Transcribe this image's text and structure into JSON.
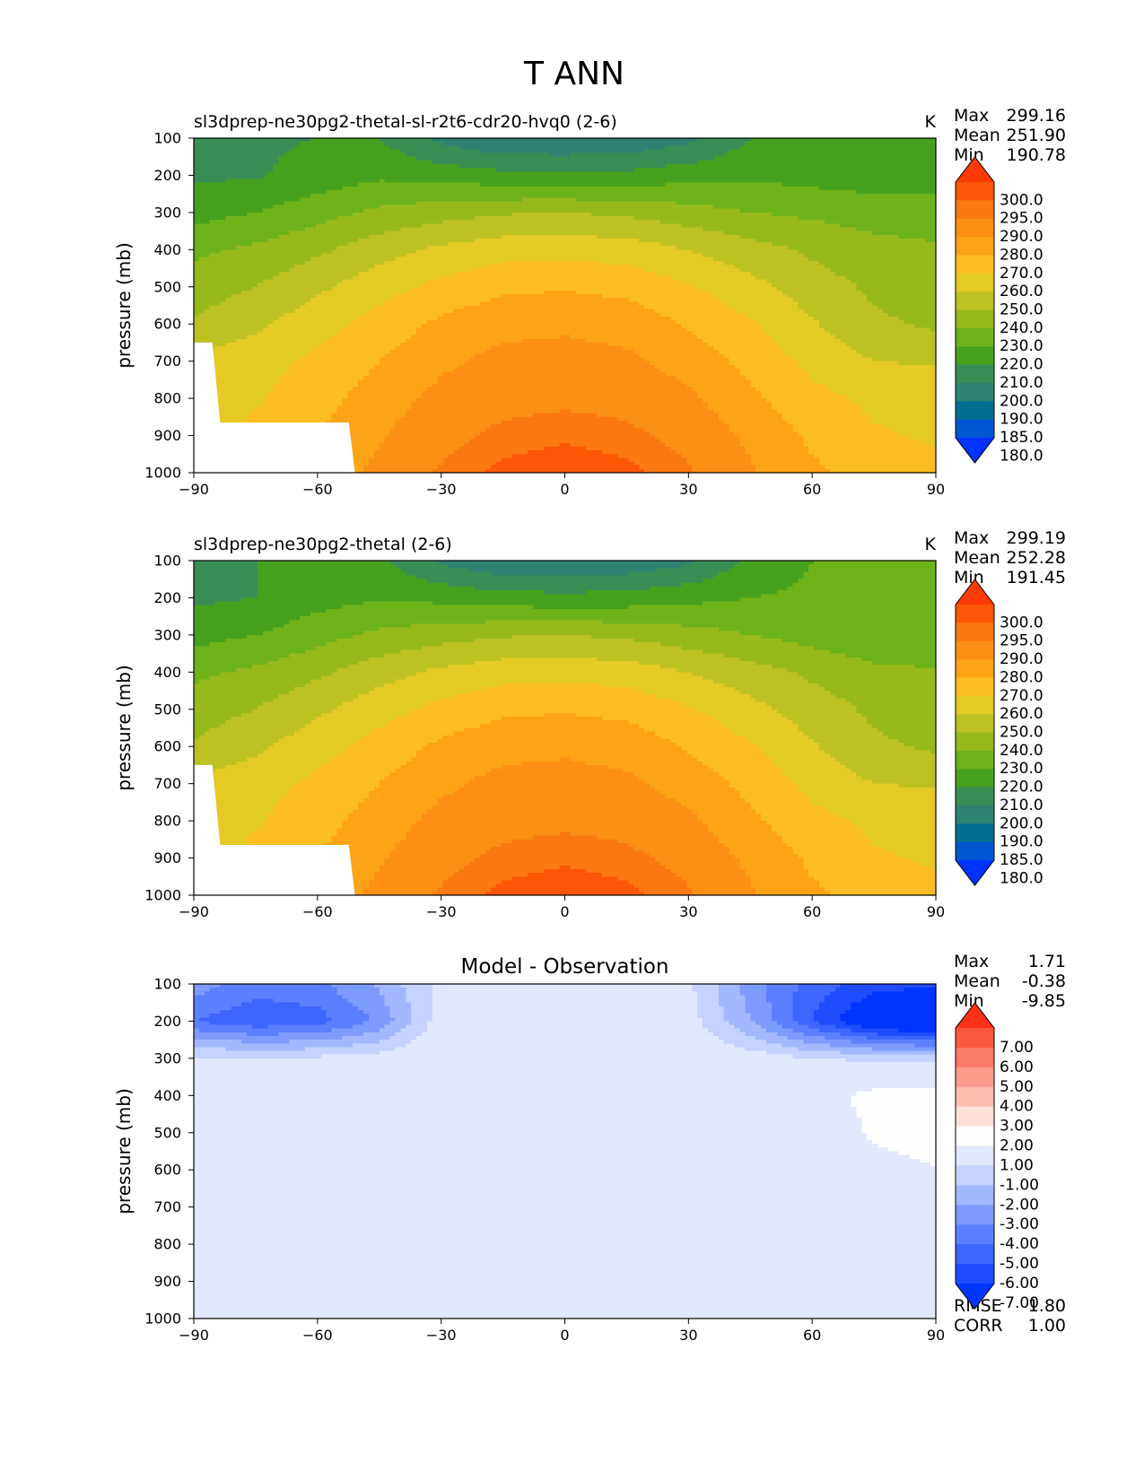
{
  "figure_title": "T ANN",
  "yaxis_label": "pressure (mb)",
  "stat_labels": {
    "max": "Max",
    "mean": "Mean",
    "min": "Min",
    "rmse": "RMSE",
    "corr": "CORR"
  },
  "colors": {
    "temperature_fill_bands": [
      "#0033ff",
      "#0055d0",
      "#007090",
      "#2e8272",
      "#398e56",
      "#46a21e",
      "#6eb21a",
      "#97ba1a",
      "#bcc222",
      "#e3ca24",
      "#fcbd22",
      "#fca316",
      "#fc8f14",
      "#fc7810",
      "#fc5606",
      "#fc3a04"
    ],
    "difference_fill_bands": [
      "#0034ff",
      "#1f4cff",
      "#3d66ff",
      "#5b80ff",
      "#7e9cff",
      "#a4b8ff",
      "#c6d2ff",
      "#e1e8ff",
      "#fefefe",
      "#fde0da",
      "#fcbcb0",
      "#fc9c8c",
      "#fc7a68",
      "#fc5840",
      "#fc3018"
    ]
  },
  "chart_data": [
    {
      "type": "heatmap",
      "title": "sl3dprep-ne30pg2-thetal-sl-r2t6-cdr20-hvq0 (2-6)",
      "units": "K",
      "ylabel": "pressure (mb)",
      "xlabel": "",
      "xlim": [
        -90,
        90
      ],
      "ylim": [
        1000,
        100
      ],
      "x_ticks": [
        "−90",
        "−60",
        "−30",
        "0",
        "30",
        "60",
        "90"
      ],
      "y_ticks": [
        "100",
        "200",
        "300",
        "400",
        "500",
        "600",
        "700",
        "800",
        "900",
        "1000"
      ],
      "stats": {
        "max": "299.16",
        "mean": "251.90",
        "min": "190.78"
      },
      "colorbar_ticks": [
        "300.0",
        "295.0",
        "290.0",
        "280.0",
        "270.0",
        "260.0",
        "250.0",
        "240.0",
        "230.0",
        "220.0",
        "210.0",
        "200.0",
        "190.0",
        "185.0",
        "180.0"
      ],
      "levels": [
        180,
        185,
        190,
        200,
        210,
        220,
        230,
        240,
        250,
        260,
        270,
        280,
        290,
        295,
        300
      ],
      "field": {
        "lat": [
          -90,
          -75,
          -60,
          -45,
          -30,
          -15,
          0,
          15,
          30,
          45,
          60,
          75,
          90
        ],
        "pressure": [
          100,
          200,
          300,
          400,
          500,
          600,
          700,
          800,
          900,
          1000
        ],
        "values": [
          [
            206,
            208,
            210,
            210,
            197,
            190,
            190,
            191,
            197,
            210,
            212,
            212,
            213
          ],
          [
            208,
            209,
            214,
            218,
            216,
            213,
            212,
            213,
            216,
            218,
            216,
            214,
            214
          ],
          [
            216,
            220,
            226,
            232,
            236,
            239,
            240,
            238,
            234,
            230,
            228,
            226,
            226
          ],
          [
            228,
            232,
            238,
            246,
            252,
            256,
            257,
            255,
            250,
            244,
            238,
            233,
            231
          ],
          [
            235,
            240,
            248,
            256,
            263,
            268,
            269,
            267,
            261,
            253,
            245,
            238,
            235
          ],
          [
            241,
            248,
            256,
            264,
            272,
            277,
            278,
            276,
            269,
            261,
            251,
            242,
            238
          ],
          [
            252,
            256,
            262,
            270,
            278,
            283,
            284,
            282,
            276,
            267,
            257,
            250,
            249
          ],
          [
            256,
            259,
            266,
            275,
            283,
            287,
            288,
            287,
            282,
            272,
            263,
            258,
            256
          ],
          [
            258,
            262,
            270,
            279,
            287,
            292,
            294,
            292,
            287,
            278,
            268,
            261,
            259
          ],
          [
            260,
            265,
            273,
            283,
            291,
            297,
            299,
            297,
            291,
            281,
            272,
            265,
            262
          ]
        ]
      },
      "no_data_mask": {
        "points": [
          [
            -90,
            650
          ],
          [
            -85.5,
            650
          ],
          [
            -83.6,
            865
          ],
          [
            -52.4,
            865
          ],
          [
            -50.9,
            1000
          ],
          [
            -90,
            1000
          ]
        ]
      }
    },
    {
      "type": "heatmap",
      "title": "sl3dprep-ne30pg2-thetal (2-6)",
      "units": "K",
      "ylabel": "pressure (mb)",
      "xlabel": "",
      "xlim": [
        -90,
        90
      ],
      "ylim": [
        1000,
        100
      ],
      "x_ticks": [
        "−90",
        "−60",
        "−30",
        "0",
        "30",
        "60",
        "90"
      ],
      "y_ticks": [
        "100",
        "200",
        "300",
        "400",
        "500",
        "600",
        "700",
        "800",
        "900",
        "1000"
      ],
      "stats": {
        "max": "299.19",
        "mean": "252.28",
        "min": "191.45"
      },
      "colorbar_ticks": [
        "300.0",
        "295.0",
        "290.0",
        "280.0",
        "270.0",
        "260.0",
        "250.0",
        "240.0",
        "230.0",
        "220.0",
        "210.0",
        "200.0",
        "190.0",
        "185.0",
        "180.0"
      ],
      "levels": [
        180,
        185,
        190,
        200,
        210,
        220,
        230,
        240,
        250,
        260,
        270,
        280,
        290,
        295,
        300
      ],
      "field": {
        "lat": [
          -90,
          -75,
          -60,
          -45,
          -30,
          -15,
          0,
          15,
          30,
          45,
          60,
          75,
          90
        ],
        "pressure": [
          100,
          200,
          300,
          400,
          500,
          600,
          700,
          800,
          900,
          1000
        ],
        "values": [
          [
            206,
            210,
            214,
            212,
            198,
            191,
            191,
            192,
            198,
            212,
            220,
            224,
            224
          ],
          [
            208,
            210,
            216,
            219,
            217,
            214,
            213,
            214,
            217,
            220,
            222,
            222,
            222
          ],
          [
            216,
            220,
            226,
            232,
            236,
            239,
            240,
            238,
            234,
            230,
            226,
            221,
            220
          ],
          [
            228,
            232,
            238,
            246,
            252,
            256,
            257,
            255,
            250,
            244,
            238,
            233,
            231
          ],
          [
            235,
            240,
            248,
            256,
            263,
            268,
            269,
            267,
            261,
            253,
            245,
            238,
            235
          ],
          [
            241,
            248,
            256,
            264,
            272,
            277,
            278,
            276,
            269,
            261,
            251,
            242,
            238
          ],
          [
            252,
            256,
            262,
            270,
            278,
            283,
            284,
            282,
            276,
            267,
            257,
            250,
            249
          ],
          [
            256,
            259,
            266,
            275,
            283,
            287,
            288,
            287,
            282,
            272,
            263,
            258,
            256
          ],
          [
            258,
            262,
            270,
            279,
            287,
            292,
            294,
            292,
            287,
            278,
            268,
            261,
            259
          ],
          [
            260,
            265,
            273,
            283,
            291,
            297,
            299,
            297,
            291,
            281,
            272,
            265,
            262
          ]
        ]
      },
      "no_data_mask": {
        "points": [
          [
            -90,
            650
          ],
          [
            -85.5,
            650
          ],
          [
            -83.6,
            865
          ],
          [
            -52.4,
            865
          ],
          [
            -50.9,
            1000
          ],
          [
            -90,
            1000
          ]
        ]
      }
    },
    {
      "type": "heatmap",
      "title": "Model - Observation",
      "units": "",
      "ylabel": "pressure (mb)",
      "xlabel": "",
      "xlim": [
        -90,
        90
      ],
      "ylim": [
        1000,
        100
      ],
      "x_ticks": [
        "−90",
        "−60",
        "−30",
        "0",
        "30",
        "60",
        "90"
      ],
      "y_ticks": [
        "100",
        "200",
        "300",
        "400",
        "500",
        "600",
        "700",
        "800",
        "900",
        "1000"
      ],
      "stats": {
        "max": "1.71",
        "mean": "-0.38",
        "min": "-9.85"
      },
      "extra_stats": {
        "rmse": "1.80",
        "corr": "1.00"
      },
      "colorbar_ticks": [
        "7.00",
        "6.00",
        "5.00",
        "4.00",
        "3.00",
        "2.00",
        "1.00",
        "-1.00",
        "-2.00",
        "-3.00",
        "-4.00",
        "-5.00",
        "-6.00",
        "-7.00"
      ],
      "levels": [
        -7,
        -6,
        -5,
        -4,
        -3,
        -2,
        -1,
        1,
        2,
        3,
        4,
        5,
        6,
        7
      ],
      "field": {
        "lat": [
          -90,
          -75,
          -60,
          -45,
          -30,
          -15,
          0,
          15,
          30,
          45,
          60,
          75,
          90
        ],
        "pressure": [
          100,
          200,
          300,
          400,
          500,
          600,
          700,
          800,
          900,
          1000
        ],
        "values": [
          [
            -3.5,
            -4.5,
            -4.2,
            -2.8,
            -0.6,
            0.0,
            0.0,
            0.0,
            -0.8,
            -3.5,
            -5.5,
            -6.5,
            -6.8
          ],
          [
            -5.0,
            -5.8,
            -5.5,
            -3.8,
            -0.4,
            0.0,
            0.0,
            0.0,
            -0.5,
            -3.0,
            -6.0,
            -8.5,
            -9.6
          ],
          [
            -0.8,
            -0.9,
            -0.8,
            -0.5,
            0.0,
            0.0,
            0.0,
            0.0,
            0.0,
            -0.4,
            -1.0,
            -1.2,
            -1.2
          ],
          [
            0.0,
            0.0,
            0.0,
            0.0,
            0.0,
            0.0,
            0.0,
            0.0,
            0.0,
            0.0,
            0.4,
            1.4,
            1.6
          ],
          [
            0.0,
            0.0,
            0.0,
            0.0,
            0.0,
            0.0,
            0.0,
            0.0,
            0.0,
            0.0,
            0.0,
            1.2,
            1.7
          ],
          [
            0.0,
            0.0,
            0.0,
            0.0,
            0.0,
            0.0,
            0.0,
            0.0,
            0.0,
            0.0,
            0.0,
            0.5,
            0.9
          ],
          [
            0.0,
            0.0,
            0.0,
            0.0,
            0.0,
            0.0,
            0.0,
            0.0,
            0.0,
            0.0,
            0.0,
            0.0,
            0.0
          ],
          [
            0.0,
            0.0,
            0.0,
            0.0,
            0.0,
            0.0,
            0.0,
            0.0,
            0.0,
            0.0,
            0.0,
            0.0,
            0.0
          ],
          [
            0.0,
            0.0,
            0.0,
            0.0,
            0.0,
            0.0,
            0.0,
            0.0,
            0.0,
            0.0,
            0.0,
            0.0,
            0.0
          ],
          [
            0.0,
            0.0,
            0.0,
            0.0,
            0.0,
            0.0,
            0.0,
            0.0,
            0.0,
            0.0,
            0.0,
            0.0,
            0.0
          ]
        ]
      }
    }
  ]
}
